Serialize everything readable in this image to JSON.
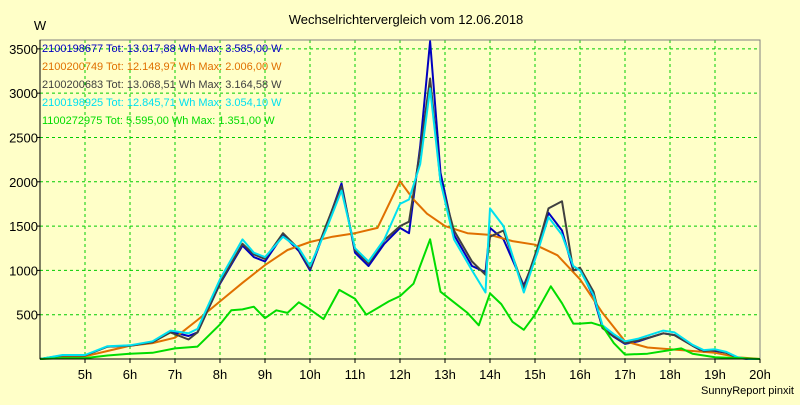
{
  "chart_data": {
    "type": "line",
    "title": "Wechselrichtervergleich vom 12.06.2018",
    "ylabel": "W",
    "footer": "SunnyReport pinxit",
    "xlim": [
      4,
      20
    ],
    "ylim": [
      0,
      3600
    ],
    "x_ticks": [
      {
        "value": 5,
        "label": "5h"
      },
      {
        "value": 6,
        "label": "6h"
      },
      {
        "value": 7,
        "label": "7h"
      },
      {
        "value": 8,
        "label": "8h"
      },
      {
        "value": 9,
        "label": "9h"
      },
      {
        "value": 10,
        "label": "10h"
      },
      {
        "value": 11,
        "label": "11h"
      },
      {
        "value": 12,
        "label": "12h"
      },
      {
        "value": 13,
        "label": "13h"
      },
      {
        "value": 14,
        "label": "14h"
      },
      {
        "value": 15,
        "label": "15h"
      },
      {
        "value": 16,
        "label": "16h"
      },
      {
        "value": 17,
        "label": "17h"
      },
      {
        "value": 18,
        "label": "18h"
      },
      {
        "value": 19,
        "label": "19h"
      },
      {
        "value": 20,
        "label": "20h"
      }
    ],
    "y_ticks": [
      {
        "value": 500,
        "label": "500"
      },
      {
        "value": 1000,
        "label": "1000"
      },
      {
        "value": 1500,
        "label": "1500"
      },
      {
        "value": 2000,
        "label": "2000"
      },
      {
        "value": 2500,
        "label": "2500"
      },
      {
        "value": 3000,
        "label": "3000"
      },
      {
        "value": 3500,
        "label": "3500"
      }
    ],
    "grid": true,
    "legend_position": "top-left inside plot",
    "colors": {
      "background": "#ffffc8",
      "plot_background": "#ffffc8",
      "grid": "#00cc00",
      "axis": "#000000"
    },
    "series": [
      {
        "name": "2100198677 Tot: 13.017,88 Wh Max: 3.585,00 W",
        "color": "#0000c0",
        "x": [
          4,
          4.5,
          5,
          5.5,
          6,
          6.5,
          6.9,
          7.3,
          7.5,
          8,
          8.5,
          8.75,
          9,
          9.4,
          9.75,
          10,
          10.35,
          10.7,
          11,
          11.3,
          11.65,
          12,
          12.2,
          12.45,
          12.67,
          12.9,
          13.2,
          13.6,
          13.9,
          14,
          14.3,
          14.75,
          15.05,
          15.3,
          15.6,
          15.85,
          16,
          16.3,
          16.5,
          16.75,
          17,
          17.3,
          17.6,
          17.85,
          18.1,
          18.5,
          18.75,
          19,
          19.25,
          19.5,
          19.75,
          20
        ],
        "values": [
          0,
          40,
          40,
          140,
          150,
          190,
          310,
          260,
          300,
          850,
          1280,
          1150,
          1100,
          1400,
          1220,
          1000,
          1480,
          1980,
          1200,
          1050,
          1300,
          1480,
          1420,
          2400,
          3585,
          2100,
          1400,
          1050,
          980,
          1480,
          1350,
          830,
          1200,
          1650,
          1450,
          1000,
          1020,
          700,
          350,
          250,
          170,
          200,
          250,
          290,
          270,
          150,
          80,
          90,
          70,
          10,
          0,
          0
        ]
      },
      {
        "name": "2100200749 Tot: 12.148,97 Wh Max: 2.006,00 W",
        "color": "#e07000",
        "x": [
          4,
          4.5,
          5,
          5.5,
          6,
          6.5,
          7,
          7.5,
          8,
          8.5,
          9,
          9.5,
          10,
          10.5,
          11,
          11.5,
          12,
          12.3,
          12.6,
          13,
          13.5,
          14,
          14.5,
          15,
          15.5,
          16,
          16.5,
          17,
          17.5,
          18,
          18.5,
          19,
          19.5,
          20
        ],
        "values": [
          0,
          20,
          30,
          90,
          150,
          180,
          240,
          440,
          650,
          860,
          1060,
          1230,
          1320,
          1380,
          1420,
          1480,
          2006,
          1800,
          1640,
          1500,
          1420,
          1400,
          1330,
          1290,
          1170,
          900,
          520,
          200,
          130,
          110,
          90,
          70,
          20,
          0
        ]
      },
      {
        "name": "2100200683 Tot: 13.068,51 Wh Max: 3.164,58 W",
        "color": "#404040",
        "x": [
          4,
          4.5,
          5,
          5.5,
          6,
          6.5,
          6.9,
          7.3,
          7.5,
          8,
          8.5,
          8.75,
          9,
          9.4,
          9.75,
          10,
          10.35,
          10.7,
          11,
          11.3,
          11.65,
          12,
          12.2,
          12.45,
          12.67,
          12.9,
          13.2,
          13.6,
          13.9,
          14,
          14.3,
          14.75,
          15.05,
          15.3,
          15.6,
          15.85,
          16,
          16.3,
          16.5,
          16.75,
          17,
          17.3,
          17.6,
          17.85,
          18.1,
          18.5,
          18.75,
          19,
          19.25,
          19.5,
          19.75,
          20
        ],
        "values": [
          0,
          40,
          40,
          140,
          150,
          190,
          300,
          220,
          300,
          860,
          1300,
          1180,
          1130,
          1420,
          1240,
          1020,
          1500,
          1950,
          1230,
          1080,
          1340,
          1500,
          1550,
          2350,
          3165,
          2000,
          1450,
          1100,
          950,
          1380,
          1450,
          800,
          1250,
          1700,
          1780,
          1000,
          1030,
          760,
          350,
          260,
          180,
          210,
          250,
          290,
          270,
          150,
          90,
          100,
          70,
          15,
          0,
          0
        ]
      },
      {
        "name": "2100198925 Tot: 12.845,71 Wh Max: 3.054,10 W",
        "color": "#00e0f0",
        "x": [
          4,
          4.5,
          5,
          5.5,
          6,
          6.5,
          6.9,
          7.3,
          7.5,
          8,
          8.5,
          8.75,
          9,
          9.4,
          9.75,
          10,
          10.35,
          10.7,
          11,
          11.3,
          11.65,
          12,
          12.2,
          12.45,
          12.67,
          12.9,
          13.2,
          13.6,
          13.9,
          14,
          14.3,
          14.75,
          15.05,
          15.3,
          15.6,
          15.85,
          16,
          16.3,
          16.5,
          16.75,
          17,
          17.3,
          17.6,
          17.85,
          18.1,
          18.5,
          18.75,
          19,
          19.25,
          19.5,
          19.75,
          20
        ],
        "values": [
          0,
          45,
          45,
          145,
          155,
          200,
          320,
          290,
          340,
          900,
          1350,
          1200,
          1150,
          1380,
          1250,
          1050,
          1450,
          1900,
          1250,
          1100,
          1350,
          1750,
          1800,
          2200,
          3054,
          2000,
          1350,
          1000,
          750,
          1700,
          1500,
          750,
          1200,
          1600,
          1400,
          1050,
          1000,
          720,
          380,
          280,
          200,
          230,
          280,
          320,
          300,
          160,
          100,
          110,
          80,
          20,
          0,
          0
        ]
      },
      {
        "name": "1100272975 Tot: 5.595,00 Wh Max: 1.351,00 W",
        "color": "#00dc00",
        "x": [
          4,
          4.5,
          5,
          5.5,
          6,
          6.5,
          7,
          7.5,
          8,
          8.25,
          8.5,
          8.75,
          9,
          9.25,
          9.5,
          9.75,
          10,
          10.3,
          10.65,
          11,
          11.25,
          11.75,
          12,
          12.3,
          12.67,
          12.9,
          13.2,
          13.5,
          13.75,
          14,
          14.25,
          14.5,
          14.75,
          15,
          15.35,
          15.6,
          15.85,
          16,
          16.25,
          16.5,
          16.75,
          17,
          17.5,
          18,
          18.25,
          18.5,
          19,
          19.5,
          20
        ],
        "values": [
          0,
          10,
          10,
          40,
          60,
          70,
          120,
          140,
          390,
          550,
          560,
          590,
          460,
          550,
          520,
          640,
          560,
          450,
          780,
          680,
          500,
          650,
          710,
          850,
          1351,
          760,
          640,
          520,
          380,
          740,
          620,
          420,
          330,
          500,
          820,
          630,
          400,
          400,
          410,
          370,
          180,
          50,
          60,
          100,
          120,
          60,
          20,
          10,
          0
        ]
      }
    ]
  }
}
